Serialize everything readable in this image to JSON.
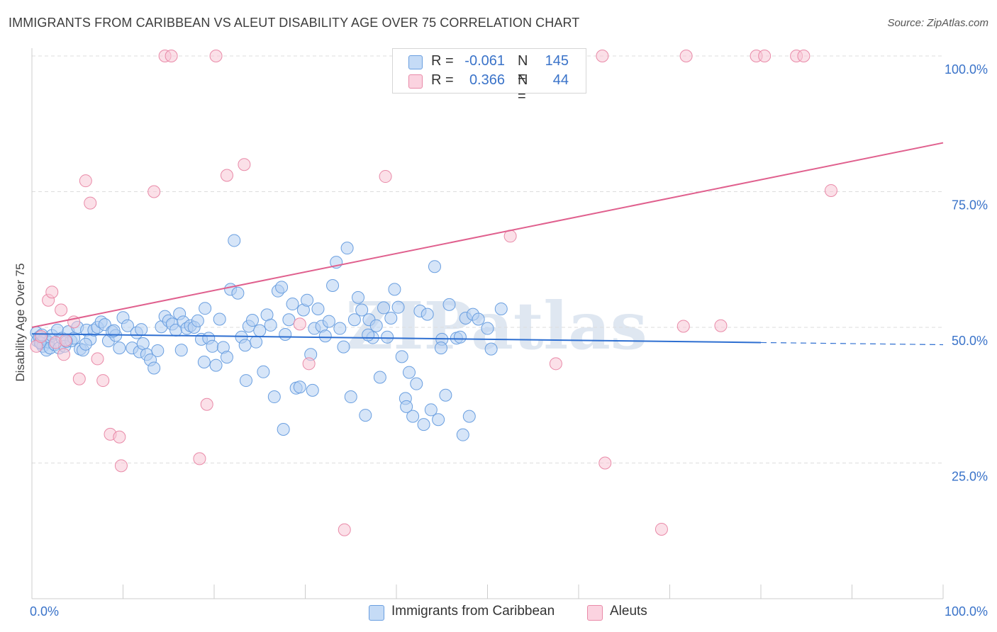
{
  "title": "IMMIGRANTS FROM CARIBBEAN VS ALEUT DISABILITY AGE OVER 75 CORRELATION CHART",
  "source": "Source: ZipAtlas.com",
  "watermark": "ZIPatlas",
  "legend": {
    "r_label": "R =",
    "n_label": "N =",
    "rows": [
      {
        "r_value": "-0.061",
        "n_value": "145",
        "color": "#a9c8f0"
      },
      {
        "r_value": "0.366",
        "n_value": "44",
        "color": "#f6b9cc"
      }
    ]
  },
  "chart_data": {
    "type": "scatter",
    "xlabel": "",
    "ylabel": "Disability Age Over 75",
    "xlim": [
      0,
      100
    ],
    "ylim": [
      0,
      100
    ],
    "x_tick_labels": [
      "0.0%",
      "100.0%"
    ],
    "y_tick_labels": [
      "25.0%",
      "50.0%",
      "75.0%",
      "100.0%"
    ],
    "y_ticks": [
      25,
      50,
      75,
      100
    ],
    "grid": true,
    "legend_position": "bottom",
    "series": [
      {
        "name": "Immigrants from Caribbean",
        "color": "#6a9fe0",
        "fill": "#b5d0f3",
        "trend": {
          "x0": 0,
          "y0": 48.8,
          "x1": 80,
          "y1": 47.2,
          "dash_to": 100,
          "dash_y": 46.8,
          "color": "#2e6fd1"
        },
        "points": [
          [
            0.5,
            49
          ],
          [
            0.6,
            47.5
          ],
          [
            0.8,
            48.2
          ],
          [
            1,
            47
          ],
          [
            1.2,
            46.5
          ],
          [
            1.4,
            48
          ],
          [
            1.6,
            45.8
          ],
          [
            1.8,
            47.3
          ],
          [
            2,
            46.2
          ],
          [
            2.2,
            48.5
          ],
          [
            2.5,
            46.8
          ],
          [
            2.8,
            49.5
          ],
          [
            3,
            46.2
          ],
          [
            3.3,
            48
          ],
          [
            3.6,
            46.5
          ],
          [
            4,
            49.2
          ],
          [
            4.3,
            47.5
          ],
          [
            4.6,
            48
          ],
          [
            5,
            50
          ],
          [
            5.3,
            46
          ],
          [
            5.6,
            45.8
          ],
          [
            6,
            49.5
          ],
          [
            6.4,
            47.8
          ],
          [
            6.8,
            49.5
          ],
          [
            7.2,
            50
          ],
          [
            7.6,
            51
          ],
          [
            8,
            50.5
          ],
          [
            8.4,
            47.5
          ],
          [
            8.8,
            49.2
          ],
          [
            9.2,
            48.5
          ],
          [
            9.6,
            46.2
          ],
          [
            10,
            51.8
          ],
          [
            10.5,
            50.3
          ],
          [
            11,
            46.2
          ],
          [
            11.5,
            49
          ],
          [
            11.8,
            45.5
          ],
          [
            12.2,
            47
          ],
          [
            12.6,
            45
          ],
          [
            13,
            44
          ],
          [
            13.4,
            42.5
          ],
          [
            13.8,
            45.7
          ],
          [
            14.2,
            50.1
          ],
          [
            14.6,
            52
          ],
          [
            15,
            51.2
          ],
          [
            15.4,
            50.6
          ],
          [
            15.8,
            49.5
          ],
          [
            16.2,
            52.5
          ],
          [
            16.6,
            51
          ],
          [
            17,
            49.8
          ],
          [
            17.4,
            50.3
          ],
          [
            17.8,
            50
          ],
          [
            18.2,
            51.2
          ],
          [
            18.6,
            47.8
          ],
          [
            19,
            53.5
          ],
          [
            19.4,
            48
          ],
          [
            19.8,
            46.5
          ],
          [
            20.2,
            43
          ],
          [
            20.6,
            51.5
          ],
          [
            21,
            46.3
          ],
          [
            21.4,
            44.5
          ],
          [
            21.8,
            57
          ],
          [
            22.2,
            66
          ],
          [
            22.6,
            56.3
          ],
          [
            23,
            48.2
          ],
          [
            23.4,
            46.7
          ],
          [
            23.8,
            50.2
          ],
          [
            24.2,
            51.3
          ],
          [
            24.6,
            47.3
          ],
          [
            25,
            49.4
          ],
          [
            25.4,
            41.8
          ],
          [
            25.8,
            52.3
          ],
          [
            26.2,
            50.4
          ],
          [
            26.6,
            37.2
          ],
          [
            27,
            56.7
          ],
          [
            27.4,
            57.4
          ],
          [
            27.8,
            48.7
          ],
          [
            28.2,
            51.4
          ],
          [
            28.6,
            54.3
          ],
          [
            29,
            38.8
          ],
          [
            29.4,
            39
          ],
          [
            29.8,
            53.2
          ],
          [
            30.2,
            55
          ],
          [
            30.6,
            45
          ],
          [
            31,
            49.8
          ],
          [
            31.4,
            53.4
          ],
          [
            31.8,
            50.2
          ],
          [
            32.2,
            48.4
          ],
          [
            32.6,
            51.1
          ],
          [
            33,
            57.7
          ],
          [
            33.4,
            62
          ],
          [
            33.8,
            49.8
          ],
          [
            34.2,
            46.4
          ],
          [
            34.6,
            64.6
          ],
          [
            35,
            37.2
          ],
          [
            35.4,
            51.4
          ],
          [
            35.8,
            55.5
          ],
          [
            36.2,
            53.2
          ],
          [
            36.6,
            33.8
          ],
          [
            37,
            51.4
          ],
          [
            37.4,
            48.1
          ],
          [
            37.8,
            50.3
          ],
          [
            38.2,
            40.8
          ],
          [
            38.6,
            53.6
          ],
          [
            39,
            48.2
          ],
          [
            39.4,
            51.7
          ],
          [
            39.8,
            57
          ],
          [
            40.2,
            53.7
          ],
          [
            40.6,
            44.6
          ],
          [
            41,
            36.9
          ],
          [
            41.4,
            41.7
          ],
          [
            41.8,
            33.6
          ],
          [
            42.2,
            39.6
          ],
          [
            42.6,
            53
          ],
          [
            43,
            32.1
          ],
          [
            43.4,
            52.4
          ],
          [
            43.8,
            34.8
          ],
          [
            44.2,
            61.2
          ],
          [
            44.6,
            33
          ],
          [
            45,
            47.8
          ],
          [
            45.4,
            37.5
          ],
          [
            45.8,
            54.2
          ],
          [
            46.6,
            48
          ],
          [
            47,
            48.2
          ],
          [
            47.6,
            51.7
          ],
          [
            48,
            33.6
          ],
          [
            48.4,
            52.4
          ],
          [
            49,
            51.5
          ],
          [
            50,
            49.8
          ],
          [
            50.4,
            46
          ],
          [
            51.5,
            53.4
          ],
          [
            0.9,
            47.2
          ],
          [
            1.1,
            48.6
          ],
          [
            3.8,
            47.4
          ],
          [
            5.9,
            46.9
          ],
          [
            9,
            49.4
          ],
          [
            12,
            49.6
          ],
          [
            18.9,
            43.6
          ],
          [
            23.5,
            40.2
          ],
          [
            27.6,
            31.2
          ],
          [
            30.8,
            38.4
          ],
          [
            36.9,
            48.6
          ],
          [
            41.1,
            35.4
          ],
          [
            44.9,
            46.2
          ],
          [
            47.3,
            30.2
          ],
          [
            16.4,
            45.8
          ]
        ]
      },
      {
        "name": "Aleuts",
        "color": "#e98aa8",
        "fill": "#f8c7d6",
        "trend": {
          "x0": 0,
          "y0": 50,
          "x1": 100,
          "y1": 84,
          "color": "#e0608e"
        },
        "points": [
          [
            0.5,
            46.5
          ],
          [
            1,
            48.3
          ],
          [
            1.8,
            55
          ],
          [
            2.2,
            56.5
          ],
          [
            2.6,
            47.2
          ],
          [
            3.2,
            53.2
          ],
          [
            3.5,
            45
          ],
          [
            4.6,
            51
          ],
          [
            5.2,
            40.5
          ],
          [
            5.9,
            77
          ],
          [
            6.4,
            72.9
          ],
          [
            7.2,
            44.2
          ],
          [
            7.8,
            40.2
          ],
          [
            8.6,
            30.3
          ],
          [
            9.6,
            29.8
          ],
          [
            9.8,
            24.5
          ],
          [
            13.4,
            75
          ],
          [
            14.6,
            100
          ],
          [
            15.3,
            100
          ],
          [
            18.4,
            25.8
          ],
          [
            19.2,
            35.8
          ],
          [
            20.2,
            100
          ],
          [
            21.4,
            78
          ],
          [
            23.3,
            80
          ],
          [
            29.4,
            50.6
          ],
          [
            30.4,
            43.3
          ],
          [
            34.3,
            12.7
          ],
          [
            38.8,
            77.8
          ],
          [
            41.4,
            100
          ],
          [
            43.2,
            100
          ],
          [
            52.5,
            66.8
          ],
          [
            57.5,
            43.3
          ],
          [
            62.6,
            100
          ],
          [
            62.9,
            25
          ],
          [
            69.1,
            12.8
          ],
          [
            71.5,
            50.2
          ],
          [
            71.8,
            100
          ],
          [
            75.6,
            50.3
          ],
          [
            79.5,
            100
          ],
          [
            80.4,
            100
          ],
          [
            83.9,
            100
          ],
          [
            84.7,
            100
          ],
          [
            87.7,
            75.2
          ],
          [
            3.7,
            47.6
          ]
        ]
      }
    ]
  }
}
